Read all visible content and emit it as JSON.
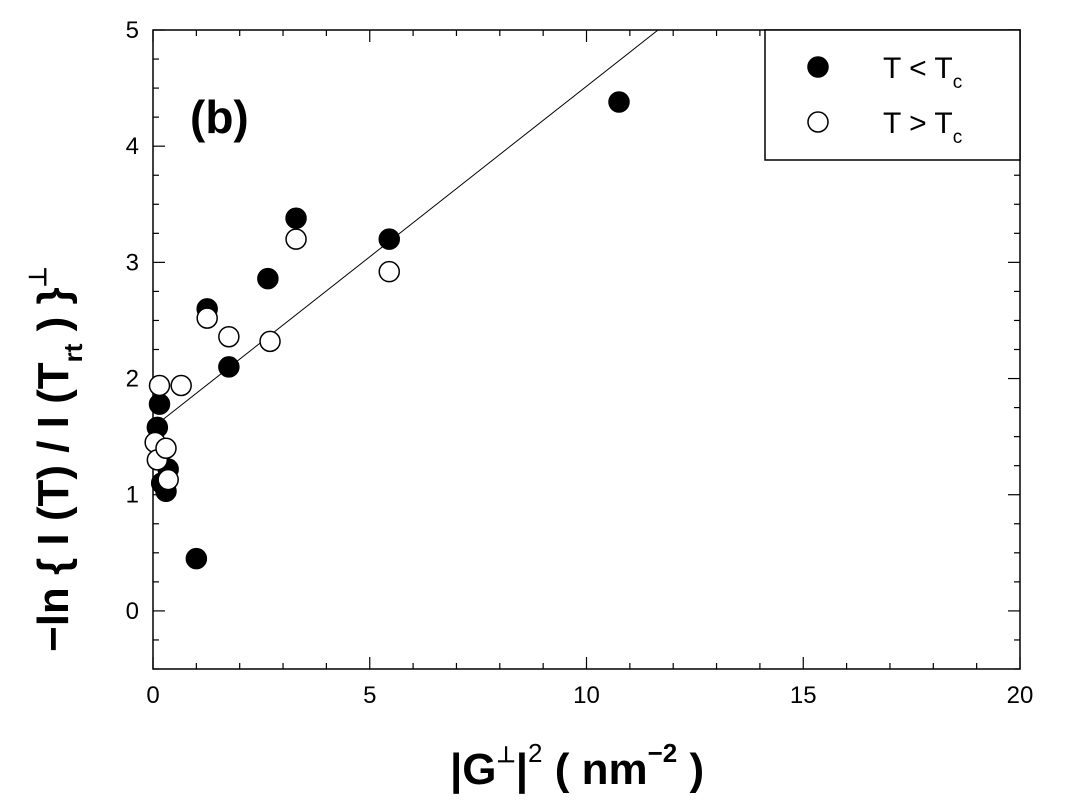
{
  "chart_data": {
    "type": "scatter",
    "panel_label": "(b)",
    "xlim": [
      0,
      20
    ],
    "ylim": [
      -0.5,
      5
    ],
    "x_ticks": [
      0,
      5,
      10,
      15,
      20
    ],
    "y_ticks": [
      0,
      1,
      2,
      3,
      4,
      5
    ],
    "xlabel": {
      "part1": "|G",
      "sup1": "⊥",
      "part2": "|",
      "sup2": "2",
      "part3": " ( nm",
      "sup3": "−2",
      "part4": " )"
    },
    "ylabel": {
      "part1": "−ln { I (T) / I (T",
      "sub1": "rt",
      "part2": " ) }",
      "sup1": "⊥"
    },
    "legend": {
      "position": "top-right",
      "entries": [
        {
          "marker": "filled",
          "pre": "T < T",
          "sub": "c"
        },
        {
          "marker": "open",
          "pre": "T > T",
          "sub": "c"
        }
      ]
    },
    "series": [
      {
        "marker": "filled",
        "points": [
          [
            0.1,
            1.58
          ],
          [
            0.15,
            1.78
          ],
          [
            0.2,
            1.1
          ],
          [
            0.3,
            1.03
          ],
          [
            0.35,
            1.22
          ],
          [
            1.0,
            0.45
          ],
          [
            1.25,
            2.6
          ],
          [
            1.75,
            2.1
          ],
          [
            2.65,
            2.86
          ],
          [
            3.3,
            3.38
          ],
          [
            5.45,
            3.2
          ],
          [
            10.75,
            4.38
          ]
        ]
      },
      {
        "marker": "open",
        "points": [
          [
            0.05,
            1.45
          ],
          [
            0.1,
            1.3
          ],
          [
            0.15,
            1.94
          ],
          [
            0.3,
            1.4
          ],
          [
            0.35,
            1.13
          ],
          [
            0.65,
            1.94
          ],
          [
            1.25,
            2.52
          ],
          [
            1.75,
            2.36
          ],
          [
            2.7,
            2.32
          ],
          [
            3.3,
            3.2
          ],
          [
            5.45,
            2.92
          ]
        ]
      }
    ],
    "fit_line": {
      "x": [
        0,
        11.65
      ],
      "y": [
        1.58,
        5.0
      ]
    },
    "colors": {
      "ink": "#000000",
      "background": "#ffffff"
    }
  }
}
